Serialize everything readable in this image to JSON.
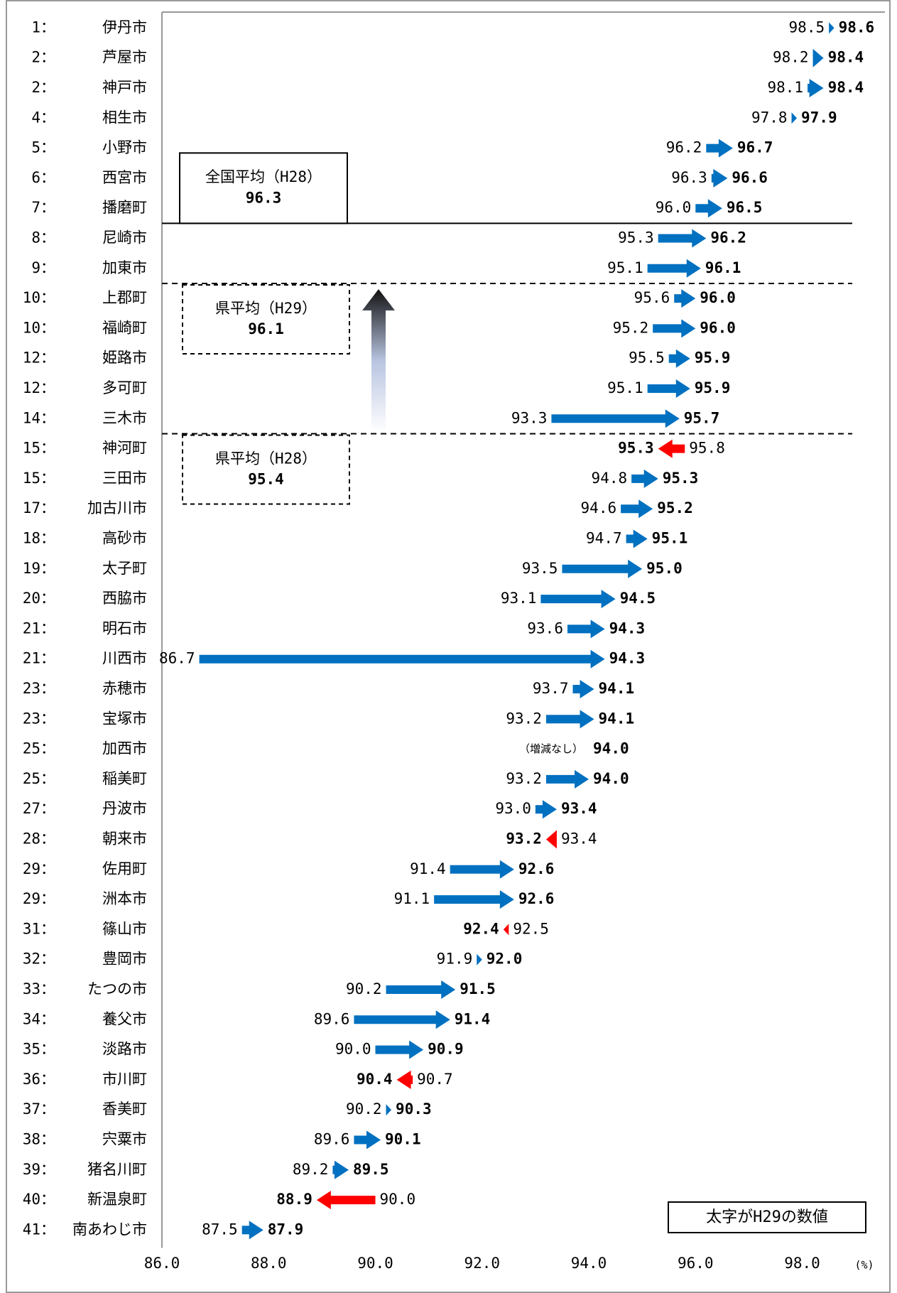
{
  "chart_data": {
    "type": "arrow",
    "rank_labels": [
      "1：",
      "2：",
      "2：",
      "4：",
      "5：",
      "6：",
      "7：",
      "8：",
      "9：",
      "10：",
      "10：",
      "12：",
      "12：",
      "14：",
      "15：",
      "15：",
      "17：",
      "18：",
      "19：",
      "20：",
      "21：",
      "21：",
      "23：",
      "23：",
      "25：",
      "25：",
      "27：",
      "28：",
      "29：",
      "29：",
      "31：",
      "32：",
      "33：",
      "34：",
      "35：",
      "36：",
      "37：",
      "38：",
      "39：",
      "40：",
      "41："
    ],
    "categories": [
      "伊丹市",
      "芦屋市",
      "神戸市",
      "相生市",
      "小野市",
      "西宮市",
      "播磨町",
      "尼崎市",
      "加東市",
      "上郡町",
      "福崎町",
      "姫路市",
      "多可町",
      "三木市",
      "神河町",
      "三田市",
      "加古川市",
      "高砂市",
      "太子町",
      "西脇市",
      "明石市",
      "川西市",
      "赤穂市",
      "宝塚市",
      "加西市",
      "稲美町",
      "丹波市",
      "朝来市",
      "佐用町",
      "洲本市",
      "篠山市",
      "豊岡市",
      "たつの市",
      "養父市",
      "淡路市",
      "市川町",
      "香美町",
      "宍粟市",
      "猪名川町",
      "新温泉町",
      "南あわじ市"
    ],
    "series": [
      {
        "values": [
          98.5,
          98.2,
          98.1,
          97.8,
          96.2,
          96.3,
          96.0,
          95.3,
          95.1,
          95.6,
          95.2,
          95.5,
          95.1,
          93.3,
          95.8,
          94.8,
          94.6,
          94.7,
          93.5,
          93.1,
          93.6,
          86.7,
          93.7,
          93.2,
          94.0,
          93.2,
          93.0,
          93.4,
          91.4,
          91.1,
          92.5,
          91.9,
          90.2,
          89.6,
          90.0,
          90.7,
          90.2,
          89.6,
          89.2,
          90.0,
          87.5
        ],
        "value_labels": [
          "98.5",
          "98.2",
          "98.1",
          "97.8",
          "96.2",
          "96.3",
          "96.0",
          "95.3",
          "95.1",
          "95.6",
          "95.2",
          "95.5",
          "95.1",
          "93.3",
          "95.8",
          "94.8",
          "94.6",
          "94.7",
          "93.5",
          "93.1",
          "93.6",
          "86.7",
          "93.7",
          "93.2",
          null,
          "93.2",
          "93.0",
          "93.4",
          "91.4",
          "91.1",
          "92.5",
          "91.9",
          "90.2",
          "89.6",
          "90.0",
          "90.7",
          "90.2",
          "89.6",
          "89.2",
          "90.0",
          "87.5"
        ]
      },
      {
        "values": [
          98.6,
          98.4,
          98.4,
          97.9,
          96.7,
          96.6,
          96.5,
          96.2,
          96.1,
          96.0,
          96.0,
          95.9,
          95.9,
          95.7,
          95.3,
          95.3,
          95.2,
          95.1,
          95.0,
          94.5,
          94.3,
          94.3,
          94.1,
          94.1,
          94.0,
          94.0,
          93.4,
          93.2,
          92.6,
          92.6,
          92.4,
          92.0,
          91.5,
          91.4,
          90.9,
          90.4,
          90.3,
          90.1,
          89.5,
          88.9,
          87.9
        ],
        "value_labels": [
          "98.6",
          "98.4",
          "98.4",
          "97.9",
          "96.7",
          "96.6",
          "96.5",
          "96.2",
          "96.1",
          "96.0",
          "96.0",
          "95.9",
          "95.9",
          "95.7",
          "95.3",
          "95.3",
          "95.2",
          "95.1",
          "95.0",
          "94.5",
          "94.3",
          "94.3",
          "94.1",
          "94.1",
          "94.0",
          "94.0",
          "93.4",
          "93.2",
          "92.6",
          "92.6",
          "92.4",
          "92.0",
          "91.5",
          "91.4",
          "90.9",
          "90.4",
          "90.3",
          "90.1",
          "89.5",
          "88.9",
          "87.9"
        ]
      }
    ],
    "no_change_label": "（増減なし）",
    "increase_color": "#0070c0",
    "decrease_color": "#ff0000",
    "reference_lines": [
      {
        "label": "全国平均（H28）",
        "value": 96.3,
        "style": "solid"
      },
      {
        "label": "県平均（H29）",
        "value": 96.1,
        "style": "dashed"
      },
      {
        "label": "県平均（H28）",
        "value": 95.4,
        "style": "dashed"
      }
    ],
    "note": "太字がH29の数値",
    "x_unit": "(%)",
    "xlim": [
      86,
      99.55
    ],
    "xticks": [
      {
        "value": 86,
        "label": "86.0"
      },
      {
        "value": 88,
        "label": "88.0"
      },
      {
        "value": 90,
        "label": "90.0"
      },
      {
        "value": 92,
        "label": "92.0"
      },
      {
        "value": 94,
        "label": "94.0"
      },
      {
        "value": 96,
        "label": "96.0"
      },
      {
        "value": 98,
        "label": "98.0"
      }
    ]
  }
}
